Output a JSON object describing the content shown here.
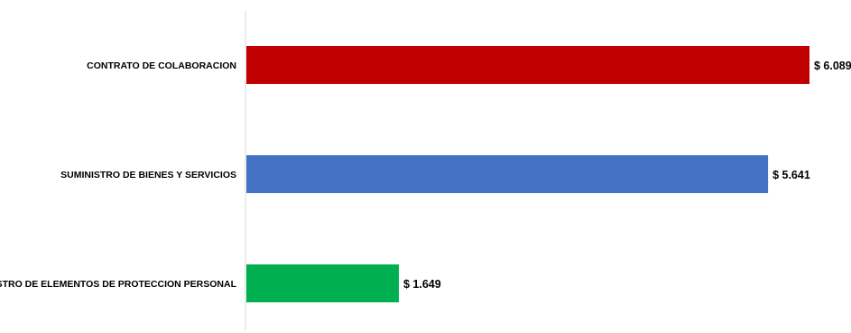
{
  "chart_data": {
    "type": "bar",
    "orientation": "horizontal",
    "title": "",
    "xlabel": "",
    "ylabel": "",
    "categories": [
      "CONTRATO DE COLABORACION",
      "SUMINISTRO DE BIENES Y SERVICIOS",
      "SUMINISTRO DE ELEMENTOS DE PROTECCION PERSONAL"
    ],
    "values": [
      6.089,
      5.641,
      1.649
    ],
    "value_labels": [
      "$ 6.089",
      "$ 5.641",
      "$ 1.649"
    ],
    "colors": [
      "#c00000",
      "#4472c4",
      "#00b050"
    ],
    "xlim": [
      0,
      6.089
    ],
    "grid": false,
    "legend": false
  }
}
